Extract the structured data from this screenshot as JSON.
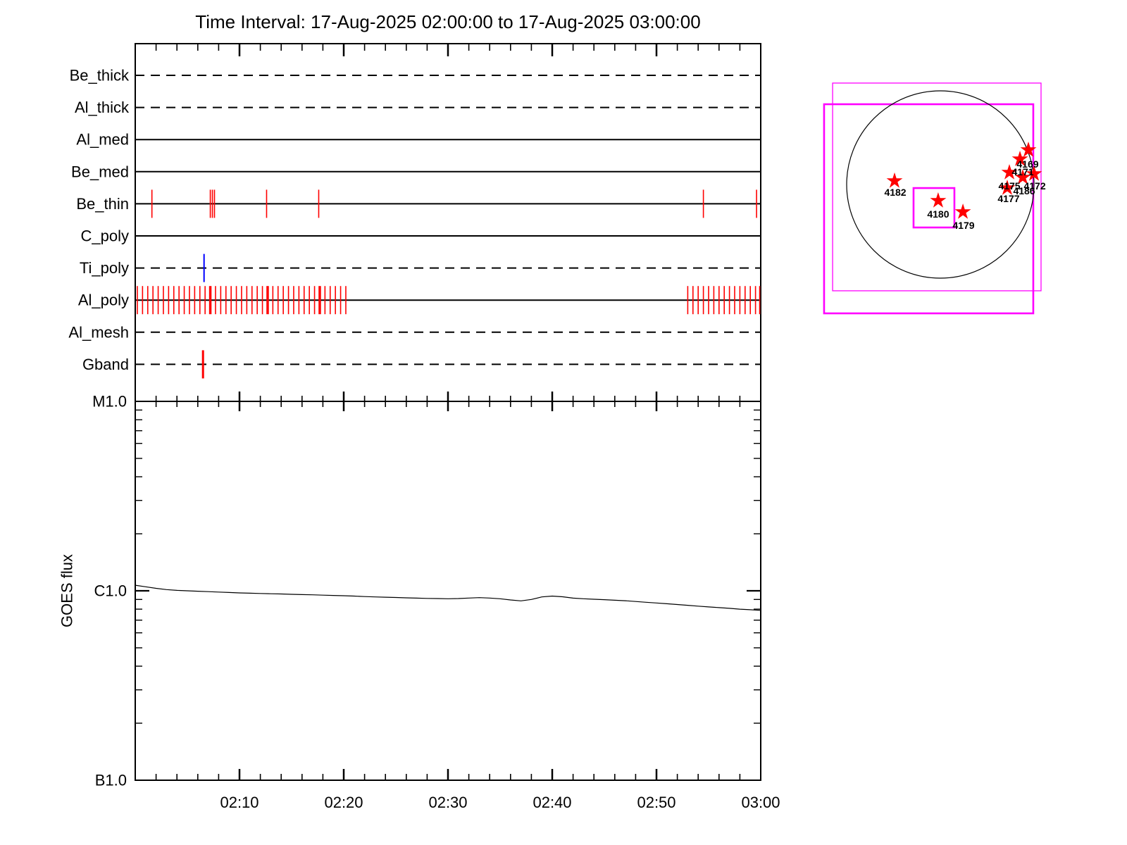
{
  "title": "Time Interval: 17-Aug-2025 02:00:00 to 17-Aug-2025 03:00:00",
  "colors": {
    "axis": "#000000",
    "exposure_tick": "#ff0000",
    "special_tick": "#0000ff",
    "fov_box": "#ff00ff",
    "star": "#ff0000",
    "background": "#ffffff"
  },
  "chart_data": [
    {
      "type": "timeline",
      "name": "xrt-filter-exposure-timeline",
      "x_axis": {
        "start": "02:00",
        "end": "03:00",
        "minor_tick_minutes": 2,
        "major_tick_minutes": 10
      },
      "channels": [
        {
          "label": "Be_thick",
          "line_style": "dashed",
          "events": []
        },
        {
          "label": "Al_thick",
          "line_style": "dashed",
          "events": []
        },
        {
          "label": "Al_med",
          "line_style": "solid",
          "events": []
        },
        {
          "label": "Be_med",
          "line_style": "solid",
          "events": []
        },
        {
          "label": "Be_thin",
          "line_style": "solid",
          "events": [
            1.6,
            7.2,
            7.4,
            7.6,
            12.6,
            17.6,
            54.5,
            59.6
          ]
        },
        {
          "label": "C_poly",
          "line_style": "solid",
          "events": []
        },
        {
          "label": "Ti_poly",
          "line_style": "dashed",
          "events": [
            {
              "t": 6.6,
              "color": "#0000ff",
              "w": 2
            }
          ]
        },
        {
          "label": "Al_poly",
          "line_style": "solid",
          "events": [
            0.2,
            0.7,
            1.2,
            1.7,
            2.2,
            2.7,
            3.2,
            3.7,
            4.2,
            4.7,
            5.2,
            5.7,
            6.2,
            6.7,
            {
              "t": 7.2,
              "w": 3.5
            },
            7.7,
            8.2,
            8.7,
            9.2,
            9.7,
            10.2,
            10.7,
            11.2,
            11.7,
            12.2,
            {
              "t": 12.7,
              "w": 3.5
            },
            13.2,
            13.7,
            14.2,
            14.7,
            15.2,
            15.7,
            16.2,
            16.7,
            17.2,
            {
              "t": 17.7,
              "w": 3.5
            },
            18.2,
            18.7,
            19.2,
            19.7,
            20.2,
            53.0,
            53.5,
            54.0,
            54.5,
            55.0,
            55.5,
            56.0,
            56.5,
            57.0,
            57.5,
            58.0,
            58.5,
            59.0,
            59.5,
            59.9
          ]
        },
        {
          "label": "Al_mesh",
          "line_style": "dashed",
          "events": []
        },
        {
          "label": "Gband",
          "line_style": "dashed",
          "events": [
            {
              "t": 6.5,
              "w": 3
            }
          ]
        }
      ]
    },
    {
      "type": "line",
      "name": "goes-flux",
      "ylabel": "GOES flux",
      "y_scale": "log",
      "flux_units": "multiples of C1.0 = 1e-6 W/m^2",
      "ylim_flux": [
        0.1,
        10
      ],
      "y_tick_labels": [
        {
          "label": "M1.0",
          "flux": 10
        },
        {
          "label": "C1.0",
          "flux": 1
        },
        {
          "label": "B1.0",
          "flux": 0.1
        }
      ],
      "x_tick_labels": [
        "02:10",
        "02:20",
        "02:30",
        "02:40",
        "02:50",
        "03:00"
      ],
      "points_t_min": [
        0,
        1,
        2,
        3,
        4,
        5,
        6,
        7,
        8,
        9,
        10,
        11,
        12,
        13,
        14,
        15,
        16,
        17,
        18,
        19,
        20,
        21,
        22,
        23,
        24,
        25,
        26,
        27,
        28,
        29,
        30,
        31,
        32,
        33,
        34,
        35,
        36,
        37,
        38,
        39,
        40,
        41,
        42,
        43,
        44,
        45,
        46,
        47,
        48,
        49,
        50,
        51,
        52,
        53,
        54,
        55,
        56,
        57,
        58,
        59,
        60
      ],
      "points_flux": [
        1.07,
        1.05,
        1.03,
        1.015,
        1.005,
        1.0,
        0.995,
        0.99,
        0.985,
        0.98,
        0.975,
        0.971,
        0.968,
        0.965,
        0.962,
        0.958,
        0.955,
        0.952,
        0.948,
        0.945,
        0.942,
        0.938,
        0.932,
        0.928,
        0.925,
        0.922,
        0.918,
        0.915,
        0.912,
        0.91,
        0.908,
        0.91,
        0.916,
        0.92,
        0.916,
        0.908,
        0.895,
        0.885,
        0.9,
        0.928,
        0.938,
        0.93,
        0.915,
        0.908,
        0.902,
        0.898,
        0.892,
        0.886,
        0.878,
        0.87,
        0.862,
        0.854,
        0.846,
        0.838,
        0.83,
        0.822,
        0.815,
        0.808,
        0.8,
        0.794,
        0.788
      ]
    },
    {
      "type": "scatter",
      "name": "solar-disk-active-regions",
      "coord_note": "x,y in units of solar radius, y positive = up",
      "regions": [
        {
          "label": "4182",
          "star": {
            "x": -0.489,
            "y": 0.038
          },
          "text": {
            "x": -0.481,
            "y": -0.083
          }
        },
        {
          "label": "4180",
          "star": {
            "x": -0.023,
            "y": -0.173
          },
          "text": {
            "x": -0.023,
            "y": -0.316
          }
        },
        {
          "label": "4179",
          "star": {
            "x": 0.241,
            "y": -0.293
          },
          "text": {
            "x": 0.248,
            "y": -0.436
          }
        },
        {
          "label": "4169",
          "star": {
            "x": 0.94,
            "y": 0.368
          },
          "text": {
            "x": 0.932,
            "y": 0.218
          }
        },
        {
          "label": "4171",
          "star": {
            "x": 0.85,
            "y": 0.271
          },
          "text": {
            "x": 0.88,
            "y": 0.135
          }
        },
        {
          "label": "4175",
          "star": {
            "x": 0.737,
            "y": 0.128
          },
          "text": {
            "x": 0.737,
            "y": -0.015
          }
        },
        {
          "label": "4172",
          "star": {
            "x": 1.0,
            "y": 0.113
          },
          "text": {
            "x": 1.008,
            "y": -0.015
          }
        },
        {
          "label": "4186",
          "star": {
            "x": 0.88,
            "y": 0.075
          },
          "text": {
            "x": 0.895,
            "y": -0.068
          }
        },
        {
          "label": "4177",
          "star": {
            "x": 0.714,
            "y": -0.038
          },
          "text": {
            "x": 0.729,
            "y": -0.15
          }
        }
      ],
      "fov_boxes": [
        {
          "name": "fov-box-outer-thin",
          "x0": -1.15,
          "y0": 1.083,
          "x1": 1.075,
          "y1": -1.135,
          "stroke_width": 1.3
        },
        {
          "name": "fov-box-outer-thick",
          "x0": -1.241,
          "y0": 0.857,
          "x1": 0.992,
          "y1": -1.376,
          "stroke_width": 2.6
        },
        {
          "name": "fov-box-target",
          "x0": -0.286,
          "y0": -0.038,
          "x1": 0.15,
          "y1": -0.459,
          "stroke_width": 2.6
        }
      ]
    }
  ]
}
